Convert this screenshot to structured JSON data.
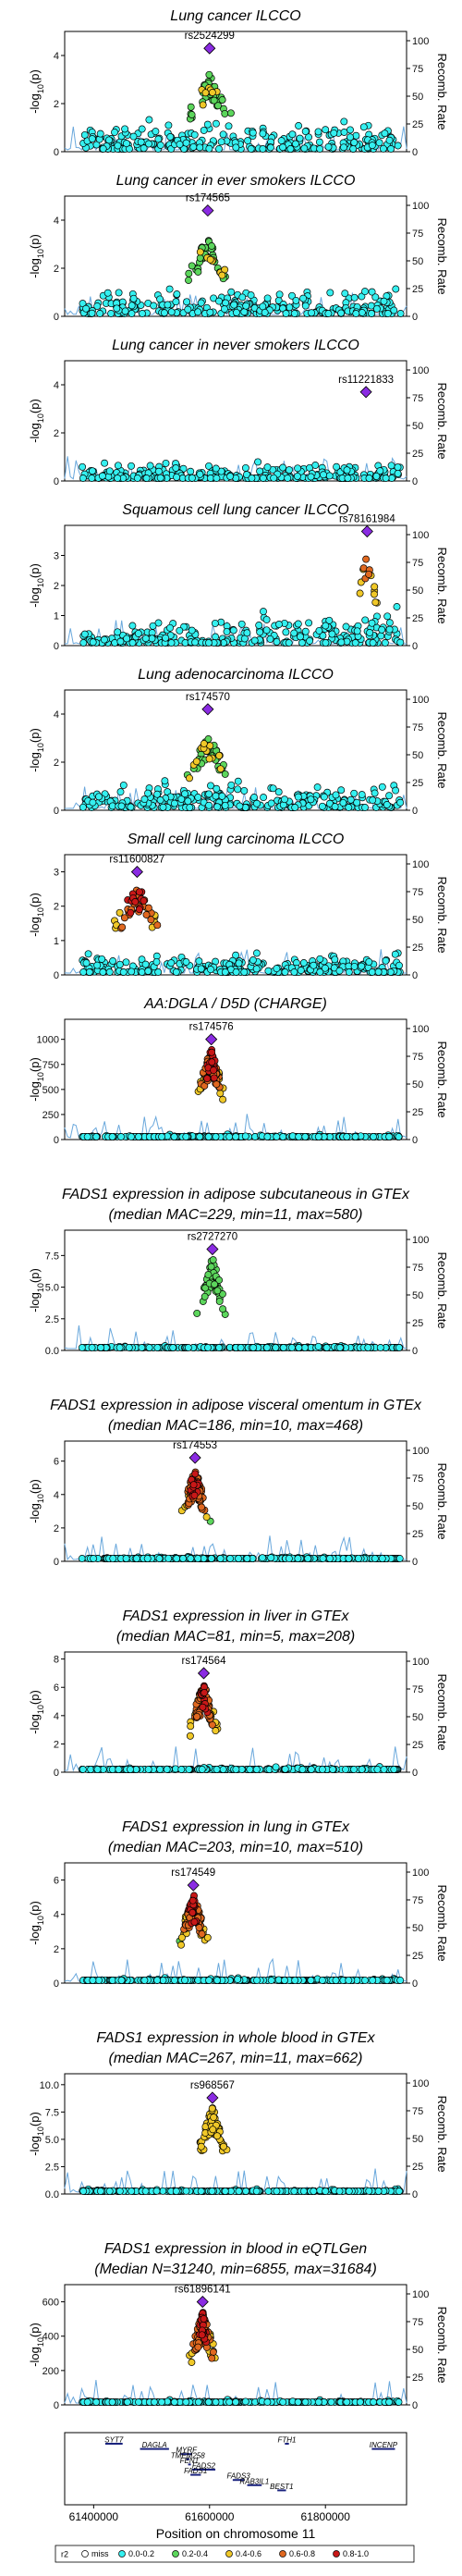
{
  "figure": {
    "xlabel": "Position on chromosome 11",
    "y_left_label_prefix": "-log",
    "y_left_label_sub": "10",
    "y_left_label_suffix": "(p)",
    "y_right_label": "Recomb. Rate",
    "legend_title": "r2"
  },
  "colors": {
    "miss": "#ffffff",
    "r2_0.0-0.2": "#35f0f0",
    "r2_0.2-0.4": "#5cd65c",
    "r2_0.4-0.6": "#f0c828",
    "r2_0.6-0.8": "#e06820",
    "r2_0.8-1.0": "#c81818",
    "lead": "#8a2be2",
    "recomb": "#6aa8dc"
  },
  "legend": [
    {
      "key": "miss",
      "label": "miss"
    },
    {
      "key": "r2_0.0-0.2",
      "label": "0.0-0.2"
    },
    {
      "key": "r2_0.2-0.4",
      "label": "0.2-0.4"
    },
    {
      "key": "r2_0.4-0.6",
      "label": "0.4-0.6"
    },
    {
      "key": "r2_0.6-0.8",
      "label": "0.6-0.8"
    },
    {
      "key": "r2_0.8-1.0",
      "label": "0.8-1.0"
    }
  ],
  "chart_data": [
    {
      "type": "scatter",
      "title": [
        "Lung cancer ILCCO"
      ],
      "lead_snp": "rs2524299",
      "lead_x": 61600000,
      "lead_y": 4.3,
      "ylim": [
        0,
        5
      ],
      "yticks": [
        0,
        2,
        4
      ],
      "recomb_ticks": [
        0,
        25,
        50,
        75,
        100
      ],
      "pattern": "broad"
    },
    {
      "type": "scatter",
      "title": [
        "Lung cancer in ever smokers ILCCO"
      ],
      "lead_snp": "rs174565",
      "lead_x": 61597000,
      "lead_y": 4.4,
      "ylim": [
        0,
        5
      ],
      "yticks": [
        0,
        2,
        4
      ],
      "recomb_ticks": [
        0,
        25,
        50,
        75,
        100
      ],
      "pattern": "broad"
    },
    {
      "type": "scatter",
      "title": [
        "Lung cancer in never smokers ILCCO"
      ],
      "lead_snp": "rs11221833",
      "lead_x": 61870000,
      "lead_y": 3.7,
      "ylim": [
        0,
        5
      ],
      "yticks": [
        0,
        2,
        4
      ],
      "recomb_ticks": [
        0,
        25,
        50,
        75,
        100
      ],
      "pattern": "flat"
    },
    {
      "type": "scatter",
      "title": [
        "Squamous cell lung cancer ILCCO"
      ],
      "lead_snp": "rs78161984",
      "lead_x": 61872000,
      "lead_y": 3.8,
      "ylim": [
        0,
        4
      ],
      "yticks": [
        0,
        1,
        2,
        3
      ],
      "recomb_ticks": [
        0,
        25,
        50,
        75,
        100
      ],
      "pattern": "right"
    },
    {
      "type": "scatter",
      "title": [
        "Lung adenocarcinoma ILCCO"
      ],
      "lead_snp": "rs174570",
      "lead_x": 61597000,
      "lead_y": 4.2,
      "ylim": [
        0,
        5
      ],
      "yticks": [
        0,
        2,
        4
      ],
      "recomb_ticks": [
        0,
        25,
        50,
        75,
        100
      ],
      "pattern": "broad"
    },
    {
      "type": "scatter",
      "title": [
        "Small cell lung carcinoma ILCCO"
      ],
      "lead_snp": "rs11600827",
      "lead_x": 61475000,
      "lead_y": 3.0,
      "ylim": [
        0,
        3.5
      ],
      "yticks": [
        0,
        1,
        2,
        3
      ],
      "recomb_ticks": [
        0,
        25,
        50,
        75,
        100
      ],
      "pattern": "left"
    },
    {
      "type": "scatter",
      "title": [
        "AA:DGLA / D5D (CHARGE)"
      ],
      "lead_snp": "rs174576",
      "lead_x": 61603000,
      "lead_y": 1000,
      "ylim": [
        0,
        1200
      ],
      "yticks": [
        0,
        250,
        500,
        750,
        1000
      ],
      "recomb_ticks": [
        0,
        25,
        50,
        75,
        100
      ],
      "pattern": "strong"
    },
    {
      "type": "scatter",
      "title": [
        "FADS1 expression in adipose subcutaneous in GTEx",
        "(median MAC=229, min=11, max=580)"
      ],
      "lead_snp": "rs2727270",
      "lead_x": 61605000,
      "lead_y": 8.0,
      "ylim": [
        0,
        9.5
      ],
      "yticks": [
        0.0,
        2.5,
        5.0,
        7.5
      ],
      "recomb_ticks": [
        0,
        25,
        50,
        75,
        100
      ],
      "pattern": "peak"
    },
    {
      "type": "scatter",
      "title": [
        "FADS1 expression in adipose visceral omentum in GTEx",
        "(median MAC=186, min=10, max=468)"
      ],
      "lead_snp": "rs174553",
      "lead_x": 61575000,
      "lead_y": 6.2,
      "ylim": [
        0,
        7.2
      ],
      "yticks": [
        0,
        2,
        4,
        6
      ],
      "recomb_ticks": [
        0,
        25,
        50,
        75,
        100
      ],
      "pattern": "strong"
    },
    {
      "type": "scatter",
      "title": [
        "FADS1 expression in liver in GTEx",
        "(median MAC=81, min=5, max=208)"
      ],
      "lead_snp": "rs174564",
      "lead_x": 61590000,
      "lead_y": 7.0,
      "ylim": [
        0,
        8.5
      ],
      "yticks": [
        0,
        2,
        4,
        6,
        8
      ],
      "recomb_ticks": [
        0,
        25,
        50,
        75,
        100
      ],
      "pattern": "strong"
    },
    {
      "type": "scatter",
      "title": [
        "FADS1 expression in lung in GTEx",
        "(median MAC=203, min=10, max=510)"
      ],
      "lead_snp": "rs174549",
      "lead_x": 61572000,
      "lead_y": 5.7,
      "ylim": [
        0,
        7
      ],
      "yticks": [
        0,
        2,
        4,
        6
      ],
      "recomb_ticks": [
        0,
        25,
        50,
        75,
        100
      ],
      "pattern": "strong"
    },
    {
      "type": "scatter",
      "title": [
        "FADS1 expression in whole blood in GTEx",
        "(median MAC=267, min=11, max=662)"
      ],
      "lead_snp": "rs968567",
      "lead_x": 61605000,
      "lead_y": 8.8,
      "ylim": [
        0,
        11
      ],
      "yticks": [
        0.0,
        2.5,
        5.0,
        7.5,
        10.0
      ],
      "recomb_ticks": [
        0,
        25,
        50,
        75,
        100
      ],
      "pattern": "yellow"
    },
    {
      "type": "scatter",
      "title": [
        "FADS1 expression in blood in eQTLGen",
        "(Median N=31240, min=6855, max=31684)"
      ],
      "lead_snp": "rs61896141",
      "lead_x": 61588000,
      "lead_y": 600,
      "ylim": [
        0,
        700
      ],
      "yticks": [
        0,
        200,
        400,
        600
      ],
      "recomb_ticks": [
        0,
        25,
        50,
        75,
        100
      ],
      "pattern": "strong"
    }
  ],
  "genes": [
    {
      "name": "SYT7",
      "start": 61420000,
      "end": 61450000,
      "row": 0
    },
    {
      "name": "DAGLA",
      "start": 61480000,
      "end": 61530000,
      "row": 1
    },
    {
      "name": "FTH1",
      "start": 61730000,
      "end": 61737000,
      "row": 0
    },
    {
      "name": "INCENP",
      "start": 61880000,
      "end": 61920000,
      "row": 1
    },
    {
      "name": "MYRF",
      "start": 61550000,
      "end": 61570000,
      "row": 2
    },
    {
      "name": "TMEM258",
      "start": 61560000,
      "end": 61565000,
      "row": 3
    },
    {
      "name": "FEN1",
      "start": 61563000,
      "end": 61567000,
      "row": 4
    },
    {
      "name": "FADS2",
      "start": 61570000,
      "end": 61610000,
      "row": 5
    },
    {
      "name": "FADS1",
      "start": 61567000,
      "end": 61585000,
      "row": 6
    },
    {
      "name": "FADS3",
      "start": 61640000,
      "end": 61660000,
      "row": 7
    },
    {
      "name": "RAB3IL1",
      "start": 61665000,
      "end": 61690000,
      "row": 8
    },
    {
      "name": "BEST1",
      "start": 61717000,
      "end": 61732000,
      "row": 9
    }
  ],
  "x_axis": {
    "range": [
      61350000,
      61940000
    ],
    "ticks": [
      61400000,
      61600000,
      61800000
    ],
    "tick_labels": [
      "61400000",
      "61600000",
      "61800000"
    ]
  }
}
